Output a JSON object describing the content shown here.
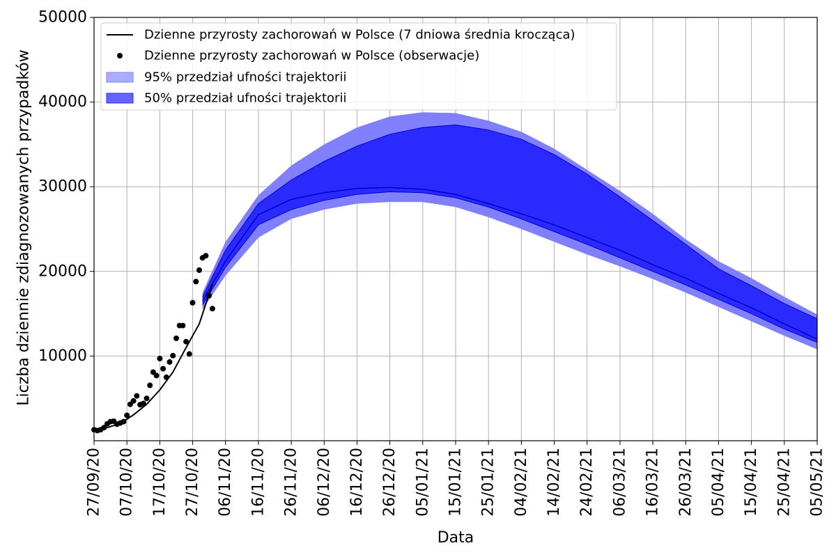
{
  "chart_data": {
    "type": "line",
    "title": "",
    "xlabel": "Data",
    "ylabel": "Liczba dziennie zdiagnozowanych przypadków",
    "xlim": [
      "2020-09-27",
      "2021-05-05"
    ],
    "ylim": [
      0,
      50000
    ],
    "grid": true,
    "legend_position": "top-left",
    "x_tick_labels": [
      "27/09/20",
      "07/10/20",
      "17/10/20",
      "27/10/20",
      "06/11/20",
      "16/11/20",
      "26/11/20",
      "06/12/20",
      "16/12/20",
      "26/12/20",
      "05/01/21",
      "15/01/21",
      "25/01/21",
      "04/02/21",
      "14/02/21",
      "24/02/21",
      "06/03/21",
      "16/03/21",
      "26/03/21",
      "05/04/21",
      "15/04/21",
      "25/04/21",
      "05/05/21"
    ],
    "y_ticks": [
      10000,
      20000,
      30000,
      40000,
      50000
    ],
    "y_tick_labels": [
      "10000",
      "20000",
      "30000",
      "40000",
      "50000"
    ],
    "colors": {
      "line": "#000000",
      "points": "#000000",
      "band95": "#8080ff",
      "band50": "#2a2aff",
      "median": "#0000cc",
      "grid": "#b0b0b0"
    },
    "series": [
      {
        "name": "Dzienne przyrosty zachorowań w Polsce (7 dniowa średnia krocząca)",
        "kind": "line",
        "x": [
          "2020-09-27",
          "2020-10-01",
          "2020-10-05",
          "2020-10-09",
          "2020-10-13",
          "2020-10-17",
          "2020-10-21",
          "2020-10-25",
          "2020-10-29",
          "2020-11-02"
        ],
        "y": [
          1300,
          1550,
          2050,
          3050,
          4300,
          6000,
          8100,
          11000,
          13800,
          18500
        ]
      },
      {
        "name": "Dzienne przyrosty zachorowań w Polsce (obserwacje)",
        "kind": "scatter",
        "x": [
          "2020-09-27",
          "2020-09-28",
          "2020-09-29",
          "2020-09-30",
          "2020-10-01",
          "2020-10-02",
          "2020-10-03",
          "2020-10-04",
          "2020-10-05",
          "2020-10-06",
          "2020-10-07",
          "2020-10-08",
          "2020-10-09",
          "2020-10-10",
          "2020-10-11",
          "2020-10-12",
          "2020-10-13",
          "2020-10-14",
          "2020-10-15",
          "2020-10-16",
          "2020-10-17",
          "2020-10-18",
          "2020-10-19",
          "2020-10-20",
          "2020-10-21",
          "2020-10-22",
          "2020-10-23",
          "2020-10-24",
          "2020-10-25",
          "2020-10-26",
          "2020-10-27",
          "2020-10-28",
          "2020-10-29",
          "2020-10-30",
          "2020-10-31",
          "2020-11-01",
          "2020-11-02"
        ],
        "y": [
          1300,
          1200,
          1300,
          1550,
          2000,
          2250,
          2300,
          1950,
          2100,
          2250,
          3000,
          4300,
          4700,
          5300,
          4250,
          4400,
          5000,
          6550,
          8100,
          7700,
          9700,
          8500,
          7500,
          9300,
          10050,
          12100,
          13600,
          13600,
          11700,
          10250,
          16300,
          18800,
          20150,
          21600,
          21850,
          17150,
          15600
        ]
      },
      {
        "name": "95% przedział ufności trajektorii",
        "kind": "band",
        "x": [
          "2020-10-30",
          "2020-11-06",
          "2020-11-16",
          "2020-11-26",
          "2020-12-06",
          "2020-12-16",
          "2020-12-26",
          "2021-01-05",
          "2021-01-15",
          "2021-01-25",
          "2021-02-04",
          "2021-02-14",
          "2021-02-24",
          "2021-03-06",
          "2021-03-16",
          "2021-03-26",
          "2021-04-05",
          "2021-04-15",
          "2021-04-25",
          "2021-05-05"
        ],
        "lower": [
          15500,
          19500,
          24000,
          26200,
          27300,
          28000,
          28200,
          28200,
          27600,
          26400,
          25000,
          23500,
          22000,
          20600,
          19100,
          17500,
          15800,
          14100,
          12400,
          10800
        ],
        "upper": [
          17500,
          23500,
          29000,
          32500,
          35000,
          37000,
          38300,
          38800,
          38700,
          37800,
          36500,
          34500,
          32000,
          29500,
          26800,
          23800,
          21200,
          19200,
          17000,
          14900
        ]
      },
      {
        "name": "50% przedział ufności trajektorii",
        "kind": "band",
        "x": [
          "2020-10-30",
          "2020-11-06",
          "2020-11-16",
          "2020-11-26",
          "2020-12-06",
          "2020-12-16",
          "2020-12-26",
          "2021-01-05",
          "2021-01-15",
          "2021-01-25",
          "2021-02-04",
          "2021-02-14",
          "2021-02-24",
          "2021-03-06",
          "2021-03-16",
          "2021-03-26",
          "2021-04-05",
          "2021-04-15",
          "2021-04-25",
          "2021-05-05"
        ],
        "lower": [
          16000,
          20500,
          25500,
          27300,
          28400,
          29100,
          29400,
          29300,
          28700,
          27600,
          26200,
          24700,
          23200,
          21600,
          20000,
          18400,
          16700,
          15000,
          13200,
          11600
        ],
        "upper": [
          17000,
          22500,
          28000,
          30800,
          33000,
          34800,
          36200,
          37000,
          37300,
          36700,
          35600,
          33800,
          31500,
          28800,
          26000,
          23200,
          20300,
          18300,
          16200,
          14400
        ],
        "median": [
          16500,
          21200,
          26700,
          28500,
          29300,
          29800,
          29900,
          29700,
          29100,
          28000,
          26800,
          25500,
          24000,
          22500,
          20800,
          19200,
          17400,
          15700,
          13800,
          12000
        ]
      }
    ]
  }
}
